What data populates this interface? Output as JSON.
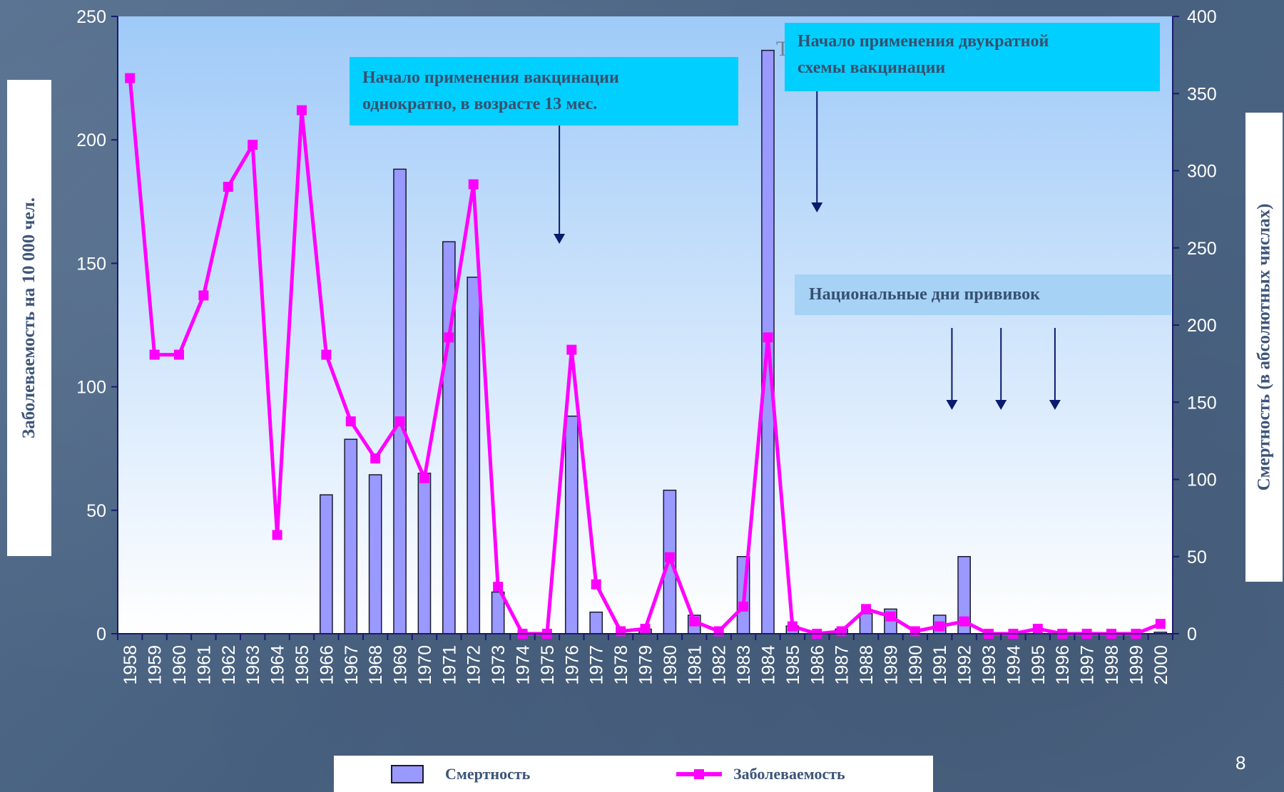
{
  "slide_number": "8",
  "chart_data": {
    "type": "bar+line",
    "categories": [
      "1958",
      "1959",
      "1960",
      "1961",
      "1962",
      "1963",
      "1964",
      "1965",
      "1966",
      "1967",
      "1968",
      "1969",
      "1970",
      "1971",
      "1972",
      "1973",
      "1974",
      "1975",
      "1976",
      "1977",
      "1978",
      "1979",
      "1980",
      "1981",
      "1982",
      "1983",
      "1984",
      "1985",
      "1986",
      "1987",
      "1988",
      "1989",
      "1990",
      "1991",
      "1992",
      "1993",
      "1994",
      "1995",
      "1996",
      "1997",
      "1998",
      "1999",
      "2000"
    ],
    "series": [
      {
        "name": "Смертность",
        "type": "bar",
        "axis": "right",
        "values": [
          0,
          0,
          0,
          0,
          0,
          0,
          0,
          0,
          90,
          126,
          103,
          301,
          104,
          254,
          231,
          27,
          0,
          0,
          141,
          14,
          0,
          3,
          93,
          12,
          0,
          50,
          378,
          5,
          0,
          3,
          13,
          16,
          0,
          12,
          50,
          0,
          0,
          0,
          0,
          0,
          0,
          0,
          1
        ]
      },
      {
        "name": "Заболеваемость",
        "type": "line",
        "axis": "left",
        "values": [
          225,
          113,
          113,
          137,
          181,
          198,
          40,
          212,
          113,
          86,
          71,
          86,
          63,
          120,
          182,
          19,
          0,
          0,
          115,
          20,
          1,
          2,
          31,
          5,
          1,
          11,
          120,
          3,
          0,
          1,
          10,
          7,
          1,
          3,
          5,
          0,
          0,
          2,
          0,
          0,
          0,
          0,
          4
        ]
      }
    ],
    "y_left": {
      "label": "Заболеваемость на 10 000 чел.",
      "min": 0,
      "max": 250,
      "ticks": [
        0,
        50,
        100,
        150,
        200,
        250
      ]
    },
    "y_right": {
      "label": "Смертность (в абсолютных числах)",
      "min": 0,
      "max": 400,
      "ticks": [
        0,
        50,
        100,
        150,
        200,
        250,
        300,
        350,
        400
      ]
    },
    "colors": {
      "bar_fill": "#9999ff",
      "bar_stroke": "#1a1a2e",
      "line": "#ff00ff",
      "axis": "#1a1a6e",
      "arrow": "#0a1a6e"
    },
    "legend": {
      "position": "bottom"
    },
    "annotations": [
      {
        "id": "single",
        "text_line1": "Начало применения вакцинации",
        "text_line2": "однократно, в возрасте 13 мес.",
        "arrow_year": "1975.5"
      },
      {
        "id": "double",
        "text_line1": "Начало применения двукратной",
        "text_line2": "схемы вакцинации",
        "arrow_year": "1986"
      },
      {
        "id": "days",
        "text": "Национальные дни прививок",
        "arrow_years": [
          "1991.5",
          "1993.5",
          "1995.7"
        ]
      }
    ],
    "stray_label": "Т"
  }
}
